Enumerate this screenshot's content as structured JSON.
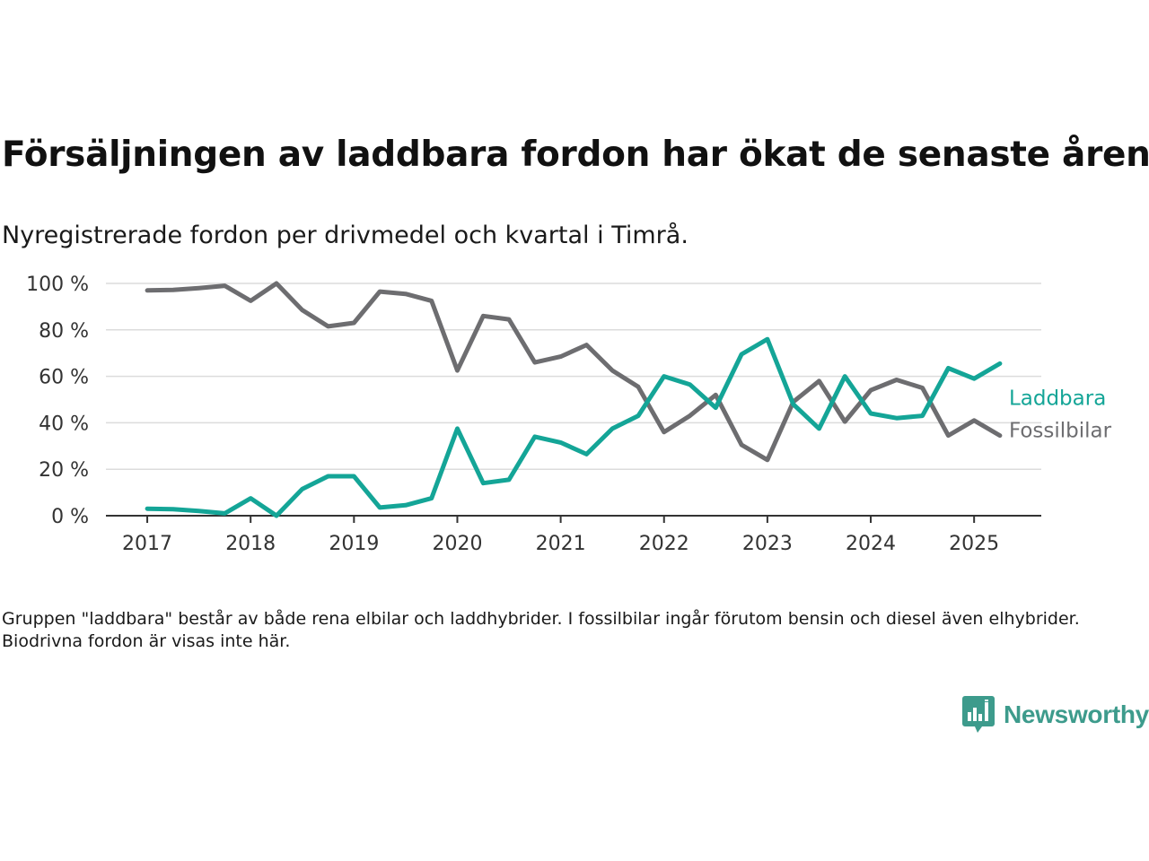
{
  "title": "Försäljningen av laddbara fordon har ökat de senaste åren",
  "subtitle": "Nyregistrerade fordon per drivmedel och kvartal i Timrå.",
  "footnote": "Gruppen \"laddbara\" består av både rena elbilar och laddhybrider. I fossilbilar ingår förutom bensin och diesel även elhybrider. Biodrivna fordon är visas inte här.",
  "logo": {
    "text": "Newsworthy",
    "icon": "newsworthy-bar-chart-icon",
    "color": "#3d9b8c"
  },
  "chart_data": {
    "type": "line",
    "x": [
      2017.0,
      2017.25,
      2017.5,
      2017.75,
      2018.0,
      2018.25,
      2018.5,
      2018.75,
      2019.0,
      2019.25,
      2019.5,
      2019.75,
      2020.0,
      2020.25,
      2020.5,
      2020.75,
      2021.0,
      2021.25,
      2021.5,
      2021.75,
      2022.0,
      2022.25,
      2022.5,
      2022.75,
      2023.0,
      2023.25,
      2023.5,
      2023.75,
      2024.0,
      2024.25,
      2024.5,
      2024.75,
      2025.0,
      2025.25
    ],
    "x_ticks": [
      2017,
      2018,
      2019,
      2020,
      2021,
      2022,
      2023,
      2024,
      2025
    ],
    "x_tick_labels": [
      "2017",
      "2018",
      "2019",
      "2020",
      "2021",
      "2022",
      "2023",
      "2024",
      "2025"
    ],
    "xlim": [
      2016.6,
      2025.65
    ],
    "ylim": [
      0,
      100
    ],
    "y_ticks": [
      0,
      20,
      40,
      60,
      80,
      100
    ],
    "y_tick_labels": [
      "0 %",
      "20 %",
      "40 %",
      "60 %",
      "80 %",
      "100 %"
    ],
    "grid": true,
    "series": [
      {
        "name": "Fossilbilar",
        "color": "#6d6d70",
        "values": [
          97,
          97.2,
          98,
          99,
          92.5,
          100,
          88.5,
          81.5,
          83,
          96.5,
          95.5,
          92.5,
          62.5,
          86,
          84.5,
          66,
          68.5,
          73.5,
          62.5,
          55.5,
          36,
          43,
          52,
          30.5,
          24,
          49,
          58,
          40.5,
          54,
          58.5,
          55,
          34.5,
          41,
          34.5
        ]
      },
      {
        "name": "Laddbara",
        "color": "#14a597",
        "values": [
          3,
          2.8,
          2,
          1,
          7.5,
          0,
          11.5,
          17,
          17,
          3.5,
          4.5,
          7.5,
          37.5,
          14,
          15.5,
          34,
          31.5,
          26.5,
          37.5,
          43,
          60,
          56.5,
          46.5,
          69.5,
          76,
          48,
          37.5,
          60,
          44,
          42,
          43,
          63.5,
          59,
          65.5
        ]
      }
    ]
  }
}
